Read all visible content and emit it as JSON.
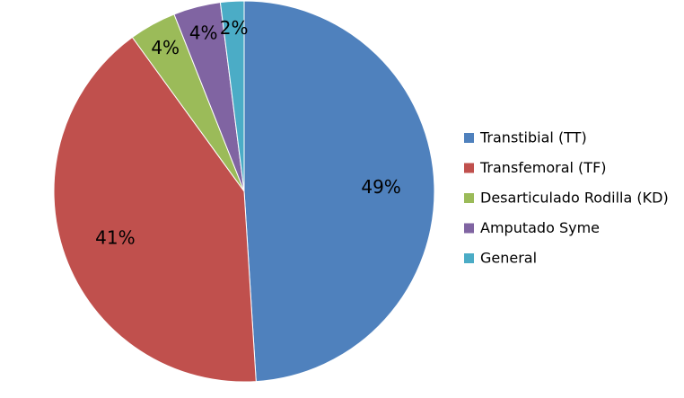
{
  "chart_data": {
    "type": "pie",
    "title": "",
    "categories": [
      "Transtibial (TT)",
      "Transfemoral (TF)",
      "Desarticulado Rodilla (KD)",
      "Amputado Syme",
      "General"
    ],
    "values": [
      49,
      41,
      4,
      4,
      2
    ],
    "labels": [
      "49%",
      "41%",
      "4%",
      "4%",
      "2%"
    ],
    "colors": [
      "#4F81BD",
      "#C0504D",
      "#9BBB59",
      "#8064A2",
      "#4BACC6"
    ],
    "start_angle": "12 o'clock",
    "direction": "clockwise",
    "legend_position": "right"
  }
}
